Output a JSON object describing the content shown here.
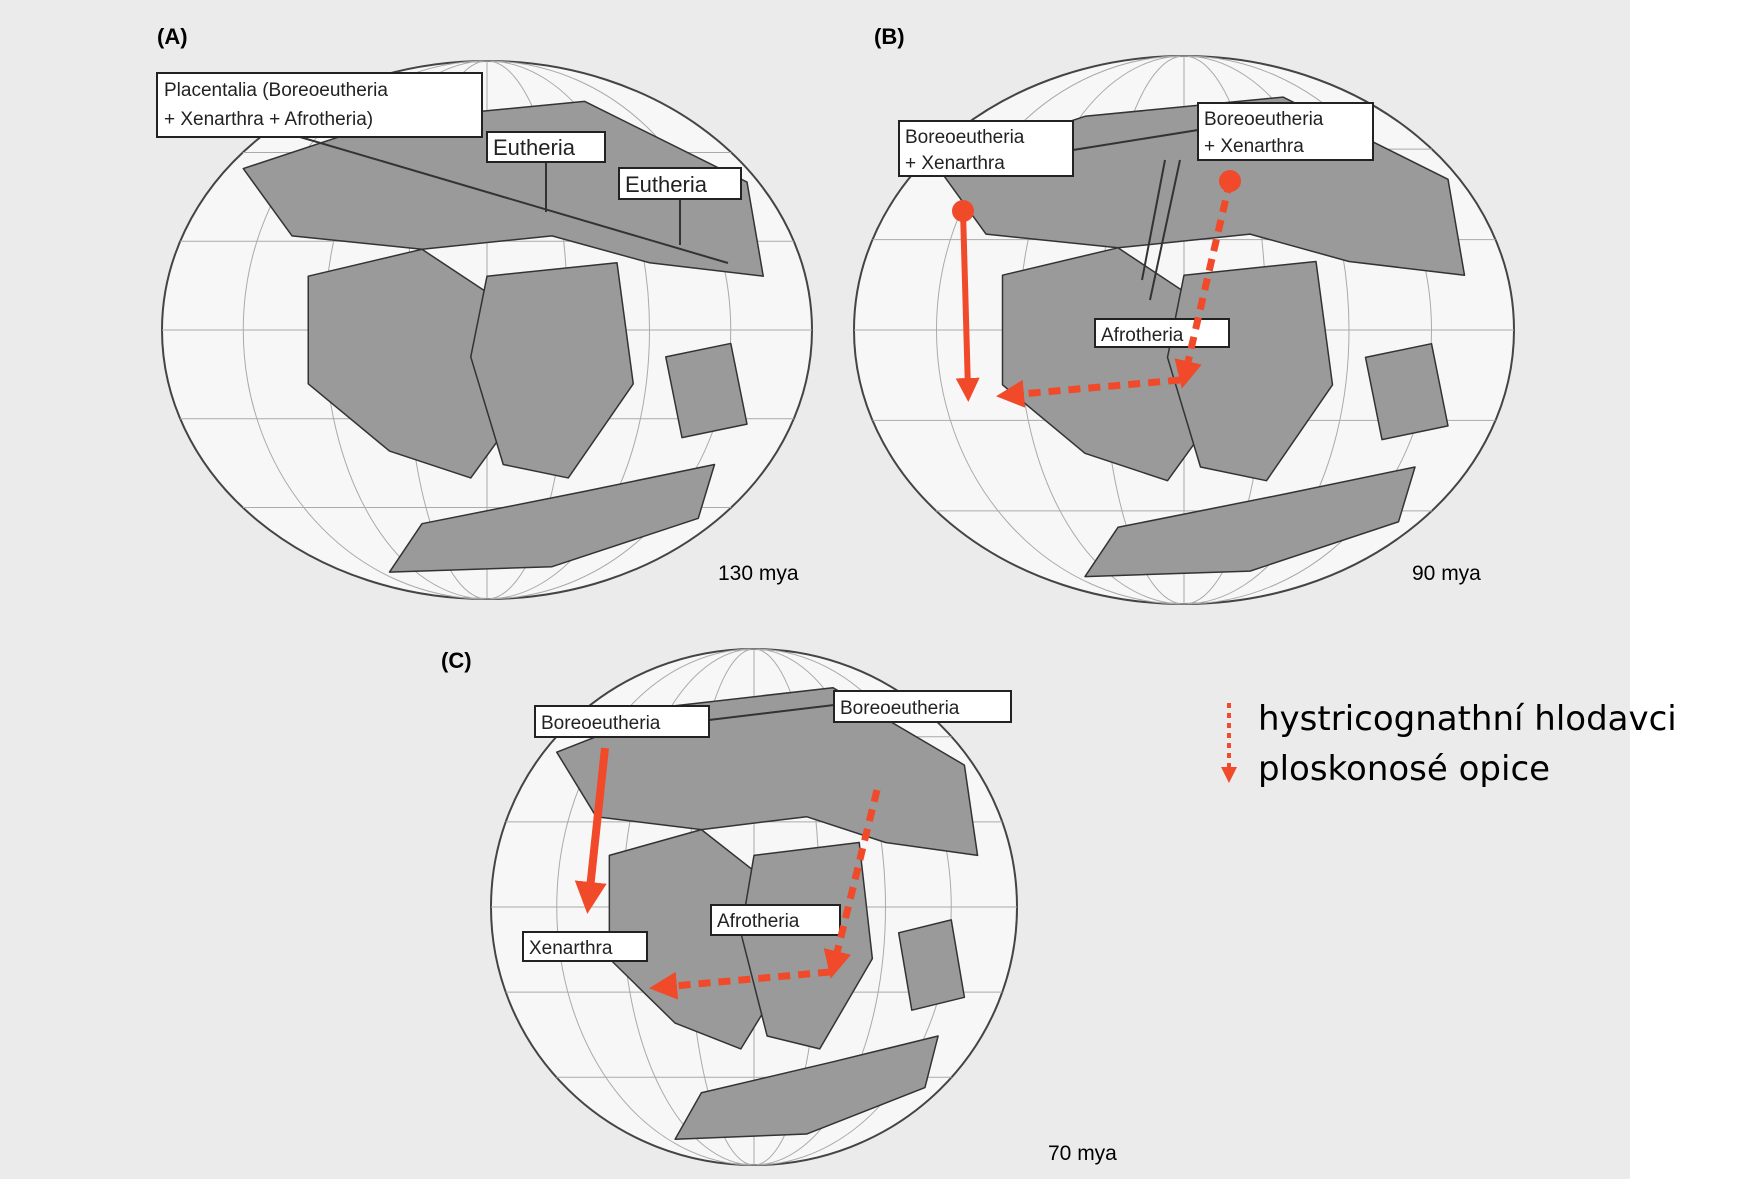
{
  "panels": [
    {
      "label": "(A)",
      "age": "130 mya",
      "callouts": [
        {
          "lines": [
            "Placentalia (Boreoeutheria",
            "+ Xenarthra + Afrotheria)"
          ]
        },
        {
          "lines": [
            "Eutheria"
          ]
        },
        {
          "lines": [
            "Eutheria"
          ]
        }
      ]
    },
    {
      "label": "(B)",
      "age": "90 mya",
      "callouts": [
        {
          "lines": [
            "Boreoeutheria",
            "+ Xenarthra"
          ]
        },
        {
          "lines": [
            "Boreoeutheria",
            "+ Xenarthra"
          ]
        },
        {
          "lines": [
            "Afrotheria"
          ]
        }
      ]
    },
    {
      "label": "(C)",
      "age": "70 mya",
      "callouts": [
        {
          "lines": [
            "Boreoeutheria"
          ]
        },
        {
          "lines": [
            "Boreoeutheria"
          ]
        },
        {
          "lines": [
            "Afrotheria"
          ]
        },
        {
          "lines": [
            "Xenarthra"
          ]
        }
      ]
    }
  ],
  "legend": [
    "hystricognathní hlodavci",
    "ploskonosé opice"
  ]
}
